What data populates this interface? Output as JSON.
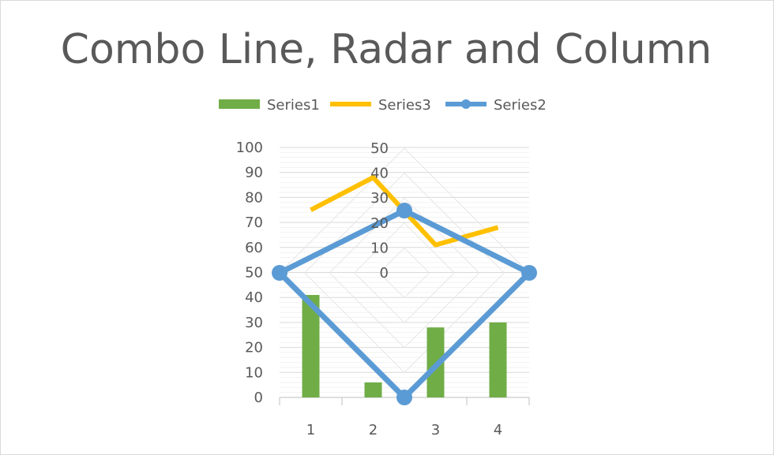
{
  "chart_data": {
    "type": "combo",
    "title": "Combo Line, Radar and Column",
    "legend_position": "top",
    "legend": [
      {
        "name": "Series1",
        "type": "column",
        "color": "#70ad47"
      },
      {
        "name": "Series3",
        "type": "line",
        "color": "#ffc000"
      },
      {
        "name": "Series2",
        "type": "radar",
        "color": "#5b9bd5"
      }
    ],
    "categories": [
      "1",
      "2",
      "3",
      "4"
    ],
    "primary_axis": {
      "ylim": [
        0,
        100
      ],
      "ticks": [
        "0",
        "10",
        "20",
        "30",
        "40",
        "50",
        "60",
        "70",
        "80",
        "90",
        "100"
      ]
    },
    "radar_axis": {
      "range": [
        0,
        50
      ],
      "ticks": [
        "0",
        "10",
        "20",
        "30",
        "40",
        "50"
      ]
    },
    "series": [
      {
        "name": "Series1",
        "type": "column",
        "values": [
          41,
          6,
          28,
          30
        ],
        "color": "#70ad47"
      },
      {
        "name": "Series3",
        "type": "line",
        "values": [
          75,
          88,
          61,
          68
        ],
        "color": "#ffc000"
      },
      {
        "name": "Series2",
        "type": "radar",
        "values": [
          25,
          50,
          50,
          50
        ],
        "color": "#5b9bd5"
      }
    ],
    "grid": true
  }
}
